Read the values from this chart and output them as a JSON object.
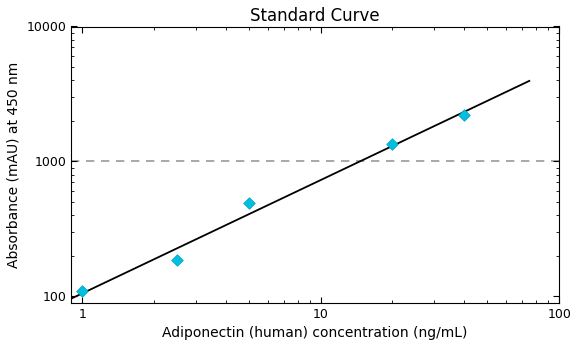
{
  "title": "Standard Curve",
  "xlabel": "Adiponectin (human) concentration (ng/mL)",
  "ylabel": "Absorbance (mAU) at 450 nm",
  "x_data": [
    1.0,
    2.5,
    5.0,
    20.0,
    40.0
  ],
  "y_data": [
    110,
    185,
    490,
    1350,
    2200
  ],
  "line_x": [
    0.9,
    70
  ],
  "line_y": [
    95,
    2600
  ],
  "xlim": [
    0.9,
    100
  ],
  "ylim": [
    90,
    10000
  ],
  "dashed_y": 1000,
  "marker_color": "#00BFDF",
  "marker_edge_color": "#009DC5",
  "line_color": "#000000",
  "dashed_color": "#999999",
  "background_color": "#ffffff",
  "title_fontsize": 12,
  "label_fontsize": 10,
  "tick_fontsize": 9
}
